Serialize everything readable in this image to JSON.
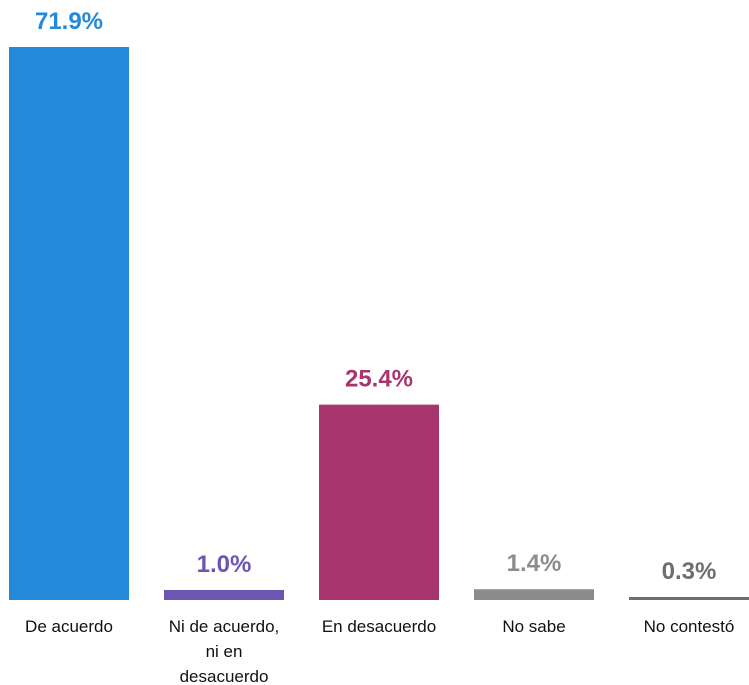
{
  "chart_data": {
    "type": "bar",
    "title": "",
    "xlabel": "",
    "ylabel": "",
    "ylim": [
      0,
      71.9
    ],
    "grid": false,
    "categories": [
      [
        "De acuerdo"
      ],
      [
        "Ni de acuerdo,",
        "ni en",
        "desacuerdo"
      ],
      [
        "En desacuerdo"
      ],
      [
        "No sabe"
      ],
      [
        "No contestó"
      ]
    ],
    "values": [
      71.9,
      1.0,
      25.4,
      1.4,
      0.3
    ],
    "labels": [
      "71.9%",
      "1.0%",
      "25.4%",
      "1.4%",
      "0.3%"
    ],
    "colors": [
      "#2389d8",
      "#6d55b3",
      "#a8366e",
      "#8c8c8c",
      "#6e6e6e"
    ]
  }
}
